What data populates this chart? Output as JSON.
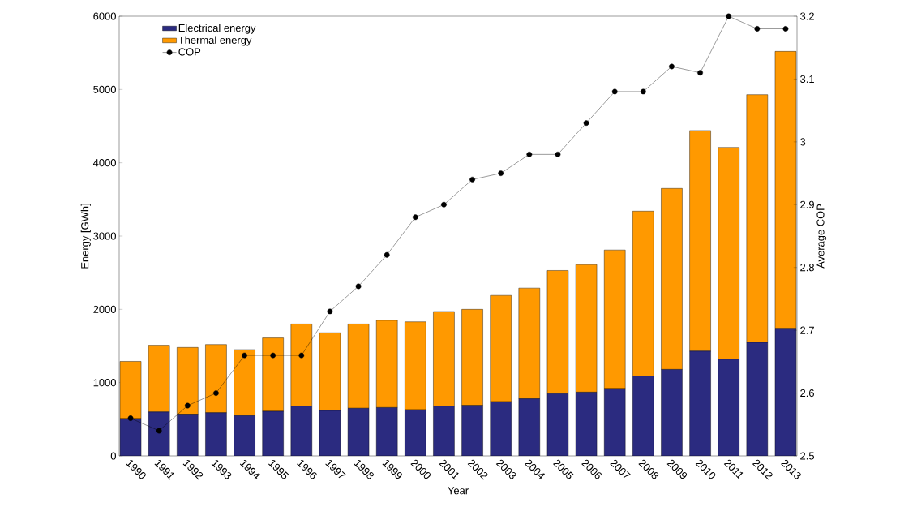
{
  "chart_data": {
    "type": "bar",
    "stacked": true,
    "categories": [
      "1990",
      "1991",
      "1992",
      "1993",
      "1994",
      "1995",
      "1996",
      "1997",
      "1998",
      "1999",
      "2000",
      "2001",
      "2002",
      "2003",
      "2004",
      "2005",
      "2006",
      "2007",
      "2008",
      "2009",
      "2010",
      "2011",
      "2012",
      "2013"
    ],
    "series": [
      {
        "name": "Electrical energy",
        "color": "#2b2b80",
        "values": [
          510,
          600,
          570,
          590,
          550,
          610,
          680,
          620,
          650,
          660,
          630,
          680,
          690,
          740,
          780,
          850,
          870,
          920,
          1090,
          1180,
          1430,
          1320,
          1550,
          1740
        ]
      },
      {
        "name": "Thermal energy",
        "color": "#ff9900",
        "values": [
          780,
          910,
          910,
          930,
          900,
          1000,
          1120,
          1060,
          1150,
          1190,
          1200,
          1290,
          1310,
          1450,
          1510,
          1680,
          1740,
          1890,
          2250,
          2470,
          3010,
          2890,
          3380,
          3780
        ]
      },
      {
        "name": "COP",
        "type": "line",
        "axis": "y2",
        "color": "#000000",
        "marker": "circle",
        "line_style": "solid",
        "values": [
          2.56,
          2.54,
          2.58,
          2.6,
          2.66,
          2.66,
          2.66,
          2.73,
          2.77,
          2.82,
          2.88,
          2.9,
          2.94,
          2.95,
          2.98,
          2.98,
          3.03,
          3.08,
          3.08,
          3.12,
          3.11,
          3.2,
          3.18,
          3.18
        ]
      }
    ],
    "xlabel": "Year",
    "ylabel": "Energy [GWh]",
    "y2label": "Average COP",
    "ylim": [
      0,
      6000
    ],
    "yticks": [
      0,
      1000,
      2000,
      3000,
      4000,
      5000,
      6000
    ],
    "y2lim": [
      2.5,
      3.2
    ],
    "y2ticks": [
      2.5,
      2.6,
      2.7,
      2.8,
      2.9,
      3,
      3.1,
      3.2
    ],
    "legend": "top left"
  }
}
